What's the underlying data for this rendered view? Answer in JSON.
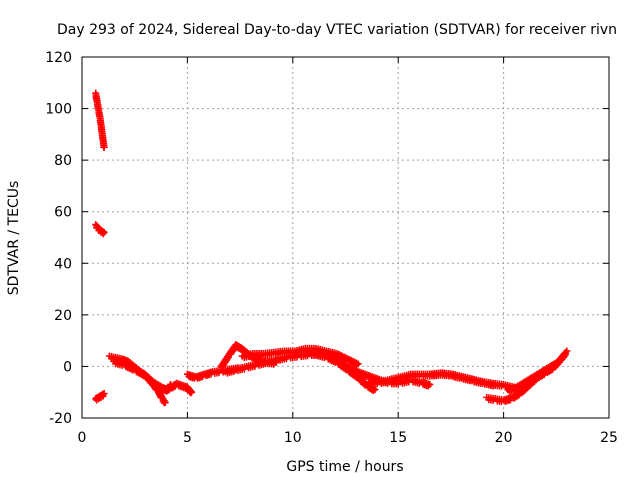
{
  "chart_data": {
    "type": "scatter",
    "title": "Day 293 of 2024, Sidereal Day-to-day VTEC variation (SDTVAR) for receiver rivn",
    "xlabel": "GPS time / hours",
    "ylabel": "SDTVAR / TECUs",
    "xlim": [
      0,
      25
    ],
    "ylim": [
      -20,
      120
    ],
    "xticks": [
      "0",
      "5",
      "10",
      "15",
      "20",
      "25"
    ],
    "yticks": [
      "-20",
      "0",
      "20",
      "40",
      "60",
      "80",
      "100",
      "120"
    ],
    "grid": true,
    "legend": "none",
    "marker_color": "#ff0000",
    "series": [
      {
        "values": [
          [
            0.65,
            106
          ],
          [
            0.72,
            103
          ],
          [
            0.78,
            100
          ],
          [
            0.85,
            97
          ],
          [
            0.9,
            94
          ],
          [
            0.95,
            91
          ],
          [
            1.0,
            88
          ],
          [
            1.05,
            85
          ]
        ]
      },
      {
        "values": [
          [
            0.65,
            55
          ],
          [
            0.75,
            54
          ],
          [
            0.85,
            53
          ],
          [
            0.95,
            52.5
          ],
          [
            1.05,
            52
          ]
        ]
      },
      {
        "values": [
          [
            0.65,
            -12.5
          ],
          [
            0.75,
            -12
          ],
          [
            0.85,
            -11.5
          ],
          [
            0.95,
            -11
          ],
          [
            1.05,
            -10.5
          ]
        ]
      },
      {
        "values": [
          [
            1.3,
            4
          ],
          [
            1.6,
            3.5
          ],
          [
            1.9,
            3
          ],
          [
            2.2,
            2
          ],
          [
            2.5,
            0
          ],
          [
            2.8,
            -2
          ],
          [
            3.1,
            -4
          ],
          [
            3.4,
            -7
          ],
          [
            3.6,
            -9
          ],
          [
            3.8,
            -12
          ],
          [
            3.95,
            -14
          ]
        ]
      },
      {
        "values": [
          [
            1.5,
            2
          ],
          [
            2.0,
            1
          ],
          [
            2.5,
            -1
          ],
          [
            3.0,
            -3
          ],
          [
            3.4,
            -6
          ],
          [
            3.8,
            -8
          ],
          [
            4.1,
            -9
          ],
          [
            4.2,
            -7
          ]
        ]
      },
      {
        "values": [
          [
            3.6,
            -8
          ],
          [
            3.9,
            -9
          ],
          [
            4.2,
            -8
          ],
          [
            4.5,
            -6.5
          ],
          [
            5.0,
            -8
          ],
          [
            5.2,
            -10
          ]
        ]
      },
      {
        "values": [
          [
            5.0,
            -3
          ],
          [
            5.4,
            -4
          ],
          [
            5.8,
            -3
          ],
          [
            6.2,
            -2
          ],
          [
            6.6,
            -1.5
          ],
          [
            7.0,
            -1
          ],
          [
            7.4,
            -0.5
          ]
        ]
      },
      {
        "values": [
          [
            6.6,
            0
          ],
          [
            7.0,
            5
          ],
          [
            7.3,
            8.5
          ],
          [
            7.6,
            7
          ],
          [
            7.9,
            5
          ],
          [
            8.3,
            3
          ],
          [
            8.7,
            2
          ],
          [
            9.2,
            1.5
          ]
        ]
      },
      {
        "values": [
          [
            6.8,
            -2
          ],
          [
            7.3,
            -1
          ],
          [
            7.8,
            0
          ],
          [
            8.3,
            1
          ],
          [
            8.8,
            2
          ],
          [
            9.3,
            3
          ],
          [
            9.8,
            4
          ],
          [
            10.3,
            4.5
          ],
          [
            10.8,
            5
          ],
          [
            11.3,
            5
          ]
        ]
      },
      {
        "values": [
          [
            7.6,
            4
          ],
          [
            8.1,
            5
          ],
          [
            8.6,
            5
          ],
          [
            9.1,
            5.5
          ],
          [
            9.6,
            6
          ],
          [
            10.1,
            6
          ],
          [
            10.6,
            7
          ],
          [
            11.1,
            7
          ],
          [
            11.6,
            6
          ],
          [
            12.1,
            5
          ],
          [
            12.6,
            3
          ],
          [
            13.1,
            1
          ]
        ]
      },
      {
        "values": [
          [
            10.6,
            6
          ],
          [
            11.1,
            5
          ],
          [
            11.6,
            4
          ],
          [
            12.1,
            2
          ],
          [
            12.6,
            -1
          ],
          [
            13.1,
            -4
          ],
          [
            13.5,
            -7
          ],
          [
            13.9,
            -9
          ]
        ]
      },
      {
        "values": [
          [
            11.6,
            5
          ],
          [
            12.1,
            3
          ],
          [
            12.6,
            0
          ],
          [
            13.1,
            -2
          ],
          [
            13.6,
            -3.5
          ],
          [
            14.1,
            -5
          ],
          [
            14.6,
            -6
          ],
          [
            15.1,
            -6
          ],
          [
            15.6,
            -5
          ],
          [
            16.1,
            -6
          ],
          [
            16.5,
            -7
          ]
        ]
      },
      {
        "values": [
          [
            13.6,
            -6
          ],
          [
            14.1,
            -6
          ],
          [
            14.6,
            -5
          ],
          [
            15.1,
            -4
          ],
          [
            15.6,
            -3
          ],
          [
            16.1,
            -3
          ],
          [
            16.6,
            -3
          ],
          [
            17.1,
            -2.5
          ],
          [
            17.6,
            -3
          ],
          [
            18.1,
            -4
          ],
          [
            18.6,
            -5
          ],
          [
            19.1,
            -6
          ],
          [
            19.6,
            -7
          ]
        ]
      },
      {
        "values": [
          [
            16.5,
            -3
          ],
          [
            17.0,
            -2.5
          ],
          [
            17.5,
            -3
          ],
          [
            18.0,
            -4
          ],
          [
            18.5,
            -5
          ],
          [
            19.0,
            -6
          ],
          [
            19.5,
            -6.5
          ],
          [
            20.0,
            -7
          ],
          [
            20.5,
            -8
          ],
          [
            20.8,
            -9
          ]
        ]
      },
      {
        "values": [
          [
            19.2,
            -12
          ],
          [
            19.6,
            -12.5
          ],
          [
            20.0,
            -13
          ],
          [
            20.4,
            -12
          ],
          [
            20.8,
            -10
          ],
          [
            21.2,
            -7
          ],
          [
            21.6,
            -4
          ],
          [
            22.0,
            -2
          ],
          [
            22.4,
            0
          ],
          [
            22.7,
            3
          ],
          [
            23.0,
            6
          ]
        ]
      },
      {
        "values": [
          [
            20.2,
            -9
          ],
          [
            20.6,
            -8
          ],
          [
            21.0,
            -6
          ],
          [
            21.4,
            -4
          ],
          [
            21.8,
            -2
          ],
          [
            22.2,
            0
          ],
          [
            22.6,
            2
          ],
          [
            22.9,
            5
          ]
        ]
      }
    ]
  }
}
